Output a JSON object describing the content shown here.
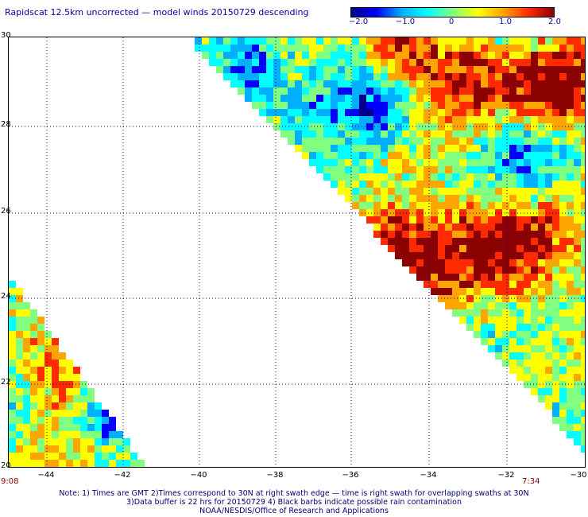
{
  "title": "Rapidscat 12.5km uncorrected — model winds 20150729 descending",
  "colorbar": {
    "ticks": [
      "−2.0",
      "−1.0",
      "0",
      "1.0",
      "2.0"
    ],
    "colors": [
      "#00008b",
      "#0000ff",
      "#00b0ff",
      "#00ffff",
      "#80ff80",
      "#ffff00",
      "#ffa500",
      "#ff2a00",
      "#8b0000"
    ]
  },
  "map": {
    "lat_labels": [
      "30",
      "28",
      "26",
      "24",
      "22",
      "20"
    ],
    "lon_labels": [
      "−44",
      "−42",
      "−40",
      "−38",
      "−36",
      "−34",
      "−32",
      "−30"
    ],
    "lat_range": [
      20,
      30
    ],
    "lon_range": [
      -44.4,
      -30
    ],
    "grid": true,
    "grid_style": "dotted",
    "left_swath_time": "9:08",
    "right_swath_time": "7:34"
  },
  "notes": [
    "Note: 1) Times are GMT 2)Times correspond to 30N at right swath edge — time is right swath for overlapping swaths at 30N",
    "3)Data buffer is 22 hrs for 20150729 4) Black barbs indicate possible rain contamination",
    "NOAA/NESDIS/Office of Research and Applications"
  ]
}
